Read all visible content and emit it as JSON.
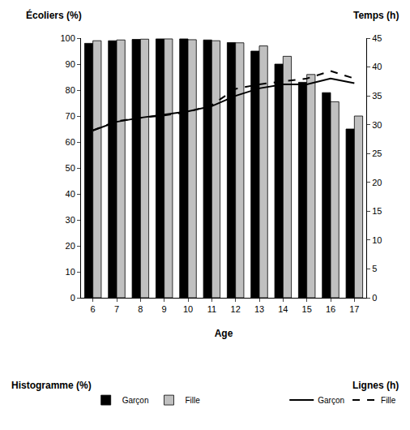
{
  "chart_data": {
    "type": "bar",
    "x_label": "Age",
    "y_label": "Écoliers (%)",
    "y2_label": "Temps (h)",
    "categories": [
      6,
      7,
      8,
      9,
      10,
      11,
      12,
      13,
      14,
      15,
      16,
      17
    ],
    "ylim": [
      0,
      100
    ],
    "yticks": [
      0,
      10,
      20,
      30,
      40,
      50,
      60,
      70,
      80,
      90,
      100
    ],
    "y2lim": [
      0,
      45
    ],
    "y2ticks": [
      0,
      5,
      10,
      15,
      20,
      25,
      30,
      35,
      40,
      45
    ],
    "grid": false,
    "legend": "bottom",
    "legend_titles": {
      "bar": "Histogramme (%)",
      "line": "Lignes (h)"
    },
    "series": [
      {
        "name": "Garçon",
        "type": "bar",
        "color": "#000000",
        "values": [
          98,
          99,
          99.5,
          99.7,
          99.7,
          99.3,
          98.3,
          95,
          90,
          83,
          79,
          65
        ]
      },
      {
        "name": "Fille",
        "type": "bar",
        "color": "#c0c0c0",
        "values": [
          99,
          99.3,
          99.6,
          99.7,
          99.4,
          99,
          98.2,
          97,
          93,
          86,
          75.5,
          70
        ]
      },
      {
        "name": "Garçon",
        "type": "line",
        "axis": "y2",
        "color": "#000000",
        "line_style": "solid",
        "values": [
          29,
          30.5,
          31.2,
          31.7,
          32.3,
          33.2,
          35,
          36.3,
          37,
          37,
          38,
          37.2
        ]
      },
      {
        "name": "Fille",
        "type": "line",
        "axis": "y2",
        "color": "#000000",
        "line_style": "dash",
        "values": [
          29,
          30.6,
          31.2,
          31.6,
          32.2,
          33.4,
          36.2,
          37,
          37.5,
          38,
          39.3,
          38
        ]
      }
    ]
  }
}
